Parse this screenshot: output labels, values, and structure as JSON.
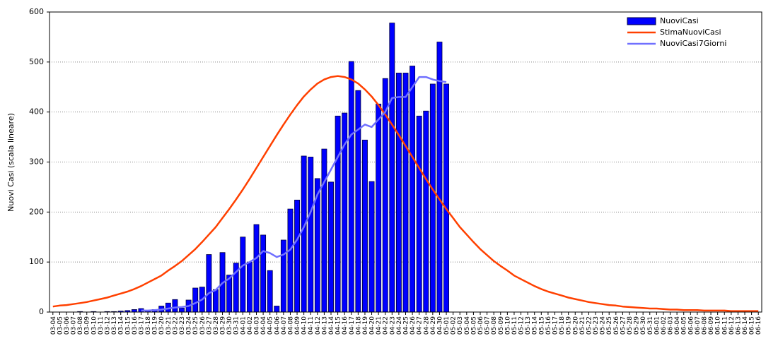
{
  "chart_data": {
    "type": "bar_line",
    "ylabel": "Nuovi Casi (scala lineare)",
    "categories": [
      "03-04",
      "03-05",
      "03-06",
      "03-07",
      "03-08",
      "03-09",
      "03-10",
      "03-11",
      "03-12",
      "03-13",
      "03-14",
      "03-15",
      "03-16",
      "03-17",
      "03-18",
      "03-19",
      "03-20",
      "03-21",
      "03-22",
      "03-23",
      "03-24",
      "03-25",
      "03-26",
      "03-27",
      "03-28",
      "03-29",
      "03-30",
      "03-31",
      "04-01",
      "04-02",
      "04-03",
      "04-04",
      "04-05",
      "04-06",
      "04-07",
      "04-08",
      "04-09",
      "04-10",
      "04-11",
      "04-12",
      "04-13",
      "04-14",
      "04-15",
      "04-16",
      "04-17",
      "04-18",
      "04-19",
      "04-20",
      "04-21",
      "04-22",
      "04-23",
      "04-24",
      "04-25",
      "04-26",
      "04-27",
      "04-28",
      "04-29",
      "04-30",
      "05-01",
      "05-02",
      "05-03",
      "05-04",
      "05-05",
      "05-06",
      "05-07",
      "05-08",
      "05-09",
      "05-10",
      "05-11",
      "05-12",
      "05-13",
      "05-14",
      "05-15",
      "05-16",
      "05-17",
      "05-18",
      "05-19",
      "05-20",
      "05-21",
      "05-22",
      "05-23",
      "05-24",
      "05-25",
      "05-26",
      "05-27",
      "05-28",
      "05-29",
      "05-30",
      "05-31",
      "06-01",
      "06-02",
      "06-03",
      "06-04",
      "06-05",
      "06-06",
      "06-07",
      "06-08",
      "06-09",
      "06-10",
      "06-11",
      "06-12",
      "06-13",
      "06-14",
      "06-15",
      "06-16"
    ],
    "series": [
      {
        "name": "NuoviCasi",
        "kind": "bar",
        "color": "#0000ff",
        "values": [
          0,
          0,
          0,
          0,
          1,
          0,
          1,
          0,
          1,
          1,
          2,
          3,
          5,
          7,
          3,
          5,
          12,
          18,
          25,
          8,
          24,
          48,
          50,
          115,
          45,
          119,
          74,
          98,
          150,
          100,
          175,
          154,
          83,
          12,
          144,
          206,
          224,
          312,
          310,
          267,
          326,
          260,
          392,
          398,
          501,
          443,
          344,
          261,
          416,
          467,
          578,
          478,
          478,
          492,
          392,
          402,
          456,
          540,
          456,
          null,
          null,
          null,
          null,
          null,
          null,
          null,
          null,
          null,
          null,
          null,
          null,
          null,
          null,
          null,
          null,
          null,
          null,
          null,
          null,
          null,
          null,
          null,
          null,
          null,
          null,
          null,
          null,
          null,
          null,
          null,
          null,
          null,
          null,
          null,
          null,
          null,
          null,
          null,
          null,
          null,
          null,
          null,
          null,
          null,
          null
        ]
      },
      {
        "name": "StimaNuoviCasi",
        "kind": "line",
        "color": "#ff4000",
        "values": [
          11,
          13,
          14,
          16,
          18,
          20,
          23,
          26,
          29,
          33,
          37,
          41,
          46,
          52,
          59,
          66,
          73,
          83,
          92,
          102,
          114,
          126,
          140,
          155,
          170,
          188,
          206,
          225,
          245,
          266,
          288,
          310,
          332,
          354,
          375,
          395,
          414,
          431,
          445,
          457,
          465,
          470,
          472,
          470,
          465,
          457,
          445,
          431,
          414,
          395,
          375,
          354,
          332,
          310,
          288,
          266,
          245,
          225,
          206,
          188,
          170,
          155,
          140,
          126,
          114,
          102,
          92,
          83,
          73,
          66,
          59,
          52,
          46,
          41,
          37,
          33,
          29,
          26,
          23,
          20,
          18,
          16,
          14,
          13,
          11,
          10,
          9,
          8,
          7,
          7,
          6,
          5,
          5,
          4,
          4,
          4,
          3,
          3,
          3,
          3,
          2,
          2,
          2,
          2,
          2
        ]
      },
      {
        "name": "NuoviCasi7Giorni",
        "kind": "line",
        "color": "#7070ff",
        "values": [
          null,
          null,
          null,
          null,
          null,
          null,
          null,
          null,
          null,
          null,
          null,
          null,
          null,
          3,
          3,
          4,
          5,
          7,
          9,
          10,
          12,
          18,
          25,
          38,
          44,
          58,
          67,
          80,
          93,
          100,
          108,
          122,
          118,
          110,
          115,
          125,
          145,
          170,
          200,
          235,
          260,
          285,
          310,
          335,
          355,
          365,
          375,
          370,
          385,
          400,
          428,
          430,
          430,
          450,
          470,
          470,
          465,
          462,
          460,
          null,
          null,
          null,
          null,
          null,
          null,
          null,
          null,
          null,
          null,
          null,
          null,
          null,
          null,
          null,
          null,
          null,
          null,
          null,
          null,
          null,
          null,
          null,
          null,
          null,
          null,
          null,
          null,
          null,
          null,
          null,
          null,
          null,
          null,
          null,
          null,
          null,
          null,
          null,
          null,
          null,
          null,
          null,
          null,
          null,
          null
        ]
      }
    ],
    "ylim": [
      0,
      600
    ],
    "yticks": [
      0,
      100,
      200,
      300,
      400,
      500,
      600
    ],
    "grid": true,
    "legend": "upper right"
  }
}
